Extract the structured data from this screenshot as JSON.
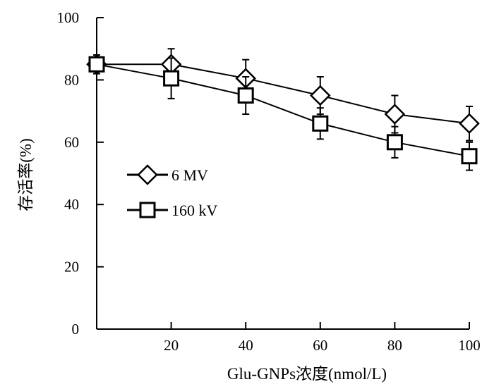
{
  "chart_data": {
    "type": "line",
    "title": "",
    "xlabel": "Glu-GNPs浓度(nmol/L)",
    "ylabel": "存活率(%)",
    "xlim": [
      0,
      100
    ],
    "ylim": [
      0,
      100
    ],
    "x_ticks": [
      20,
      40,
      60,
      80,
      100
    ],
    "y_ticks": [
      0,
      20,
      40,
      60,
      80,
      100
    ],
    "legend_position": "left-middle",
    "grid": false,
    "series": [
      {
        "name": "6 MV",
        "marker": "diamond",
        "color": "#000000",
        "x": [
          0,
          20,
          40,
          60,
          80,
          100
        ],
        "y": [
          85,
          85,
          80.5,
          75,
          69,
          66
        ],
        "error": [
          3,
          5,
          6,
          6,
          6,
          5.5
        ]
      },
      {
        "name": "160 kV",
        "marker": "square",
        "color": "#000000",
        "x": [
          0,
          20,
          40,
          60,
          80,
          100
        ],
        "y": [
          85,
          80.5,
          75,
          66,
          60,
          55.5
        ],
        "error": [
          3,
          6.5,
          6,
          5,
          5,
          4.5
        ]
      }
    ]
  }
}
